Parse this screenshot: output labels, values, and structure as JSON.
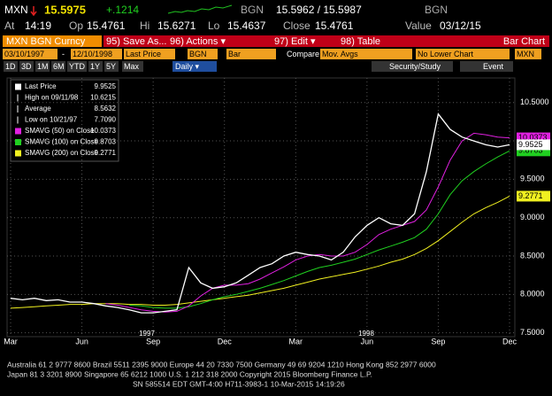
{
  "header": {
    "ticker": "MXN",
    "last": "15.5975",
    "change": "+.1214",
    "source": "BGN",
    "bid_ask": "15.5962 / 15.5987",
    "source2": "BGN",
    "quote": [
      {
        "label": "At",
        "value": "14:19"
      },
      {
        "label": "Op",
        "value": "15.4761"
      },
      {
        "label": "Hi",
        "value": "15.6271"
      },
      {
        "label": "Lo",
        "value": "15.4637"
      },
      {
        "label": "Close",
        "value": "15.4761"
      },
      {
        "label": "Value",
        "value": "03/12/15"
      }
    ]
  },
  "toolbar": {
    "security": "MXN BGN Curncy",
    "menu": [
      "95) Save As...",
      "96) Actions ▾",
      "97) Edit ▾",
      "98) Table"
    ],
    "view": "Bar Chart"
  },
  "settings": {
    "fields": [
      "03/10/1997",
      "-",
      "12/10/1998",
      "Last Price",
      "BGN",
      "Bar",
      "Compare",
      "Mov. Avgs",
      "No Lower Chart",
      "MXN"
    ]
  },
  "ranges": {
    "buttons": [
      "1D",
      "3D",
      "1M",
      "6M",
      "YTD",
      "1Y",
      "5Y",
      "Max"
    ],
    "period": "Daily ▾",
    "study": "Security/Study",
    "event": "Event"
  },
  "chart_data": {
    "type": "line",
    "categories": [
      "Mar",
      null,
      null,
      null,
      null,
      null,
      "Jun",
      null,
      null,
      null,
      null,
      null,
      "Sep",
      null,
      null,
      null,
      null,
      null,
      "Dec",
      null,
      null,
      null,
      null,
      null,
      "Mar",
      null,
      null,
      null,
      null,
      null,
      "Jun",
      null,
      null,
      null,
      null,
      null,
      "Sep",
      null,
      null,
      null,
      null,
      null,
      "Dec"
    ],
    "year_labels": [
      "1997",
      "1998"
    ],
    "series": [
      {
        "name": "Last Price",
        "color": "#ffffff",
        "last_label": "9.9525",
        "values": [
          7.95,
          7.93,
          7.95,
          7.92,
          7.93,
          7.9,
          7.9,
          7.88,
          7.85,
          7.83,
          7.8,
          7.76,
          7.76,
          7.78,
          7.8,
          8.35,
          8.15,
          8.08,
          8.1,
          8.15,
          8.25,
          8.35,
          8.4,
          8.5,
          8.55,
          8.52,
          8.5,
          8.45,
          8.55,
          8.75,
          8.9,
          9.0,
          8.92,
          8.9,
          9.05,
          9.6,
          10.35,
          10.15,
          10.05,
          10.0,
          9.95,
          9.92,
          9.95
        ]
      },
      {
        "name": "SMAVG (50) on Close",
        "color": "#e020e0",
        "last_label": "10.0373",
        "values": [
          null,
          null,
          null,
          null,
          null,
          null,
          null,
          null,
          7.88,
          7.86,
          7.83,
          7.8,
          7.78,
          7.77,
          7.78,
          7.85,
          7.98,
          8.08,
          8.12,
          8.12,
          8.14,
          8.2,
          8.28,
          8.36,
          8.45,
          8.5,
          8.52,
          8.5,
          8.5,
          8.55,
          8.65,
          8.78,
          8.85,
          8.9,
          8.95,
          9.1,
          9.4,
          9.75,
          10.0,
          10.1,
          10.08,
          10.05,
          10.04
        ]
      },
      {
        "name": "SMAVG (100) on Close",
        "color": "#20d020",
        "last_label": "9.8703",
        "values": [
          null,
          null,
          null,
          null,
          null,
          null,
          null,
          null,
          null,
          null,
          7.86,
          7.85,
          7.83,
          7.82,
          7.82,
          7.84,
          7.88,
          7.93,
          7.97,
          8.0,
          8.04,
          8.08,
          8.13,
          8.18,
          8.24,
          8.3,
          8.35,
          8.38,
          8.42,
          8.46,
          8.52,
          8.58,
          8.63,
          8.68,
          8.74,
          8.85,
          9.05,
          9.3,
          9.48,
          9.6,
          9.7,
          9.79,
          9.87
        ]
      },
      {
        "name": "SMAVG (200) on Close",
        "color": "#f0f020",
        "last_label": "9.2771",
        "values": [
          7.82,
          7.83,
          7.84,
          7.85,
          7.86,
          7.87,
          7.87,
          7.88,
          7.88,
          7.88,
          7.87,
          7.87,
          7.86,
          7.86,
          7.87,
          7.89,
          7.91,
          7.93,
          7.95,
          7.97,
          7.99,
          8.02,
          8.05,
          8.08,
          8.12,
          8.16,
          8.2,
          8.23,
          8.26,
          8.29,
          8.33,
          8.37,
          8.42,
          8.46,
          8.52,
          8.6,
          8.7,
          8.82,
          8.94,
          9.05,
          9.13,
          9.2,
          9.28
        ]
      }
    ],
    "stats": [
      {
        "label": "High on 09/11/98",
        "value": "10.6215"
      },
      {
        "label": "Average",
        "value": "8.5632"
      },
      {
        "label": "Low on 10/21/97",
        "value": "7.7090"
      }
    ],
    "ylim": [
      7.45,
      10.82
    ],
    "yticks": [
      {
        "value": 7.5,
        "label": "7.5000"
      },
      {
        "value": 8,
        "label": "8.0000"
      },
      {
        "value": 8.5,
        "label": "8.5000"
      },
      {
        "value": 9,
        "label": "9.0000"
      },
      {
        "value": 9.5,
        "label": "9.5000"
      },
      {
        "value": 10,
        "label": "10.0000"
      },
      {
        "value": 10.5,
        "label": "10.5000"
      }
    ],
    "grid": true
  },
  "footer": {
    "lines": [
      "Australia 61 2 9777 8600 Brazil 5511 2395 9000 Europe 44 20 7330 7500 Germany 49 69 9204 1210 Hong Kong 852 2977 6000",
      "Japan 81 3 3201 8900          Singapore 65 6212 1000          U.S. 1 212 318 2000          Copyright 2015 Bloomberg Finance L.P.",
      "SN 585514 EDT  GMT-4:00 H711-3983-1 10-Mar-2015 14:19:26"
    ]
  }
}
